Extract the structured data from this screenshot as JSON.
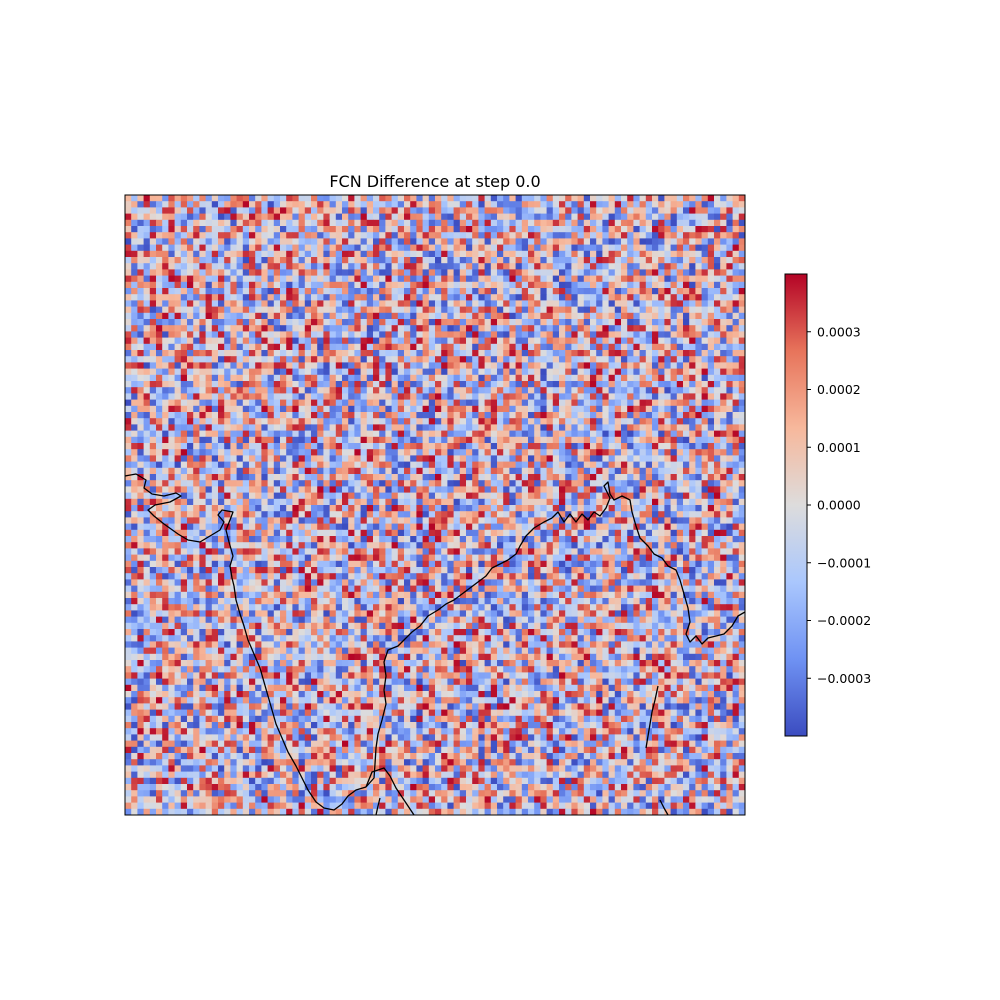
{
  "chart_data": {
    "type": "heatmap",
    "title": "FCN Difference at step 0.0",
    "xlabel": "",
    "ylabel": "",
    "colormap": "coolwarm",
    "colormap_stops": [
      "#3b4cc0",
      "#6f92f3",
      "#aac7fd",
      "#dddcdc",
      "#f7b89c",
      "#e7745b",
      "#b40426"
    ],
    "value_range": [
      -0.0004,
      0.0004
    ],
    "grid_shape": [
      100,
      100
    ],
    "value_distribution": "uniform random noise in [-0.0004, 0.0004]",
    "map_overlay": "coastlines (India and surrounding region)",
    "coastline_color": "#000000",
    "colorbar": {
      "placement": "right",
      "ticks": [
        {
          "value": 0.0003,
          "label": "0.0003"
        },
        {
          "value": 0.0002,
          "label": "0.0002"
        },
        {
          "value": 0.0001,
          "label": "0.0001"
        },
        {
          "value": 0.0,
          "label": "0.0000"
        },
        {
          "value": -0.0001,
          "label": "−0.0001"
        },
        {
          "value": -0.0002,
          "label": "−0.0002"
        },
        {
          "value": -0.0003,
          "label": "−0.0003"
        }
      ]
    }
  }
}
